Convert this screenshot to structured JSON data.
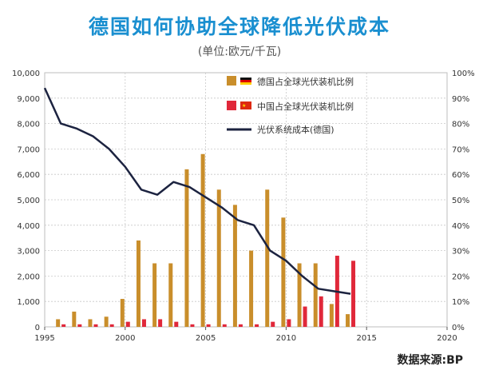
{
  "title": "德国如何协助全球降低光伏成本",
  "subtitle": "(单位:欧元/千瓦)",
  "source": "数据来源:BP",
  "colors": {
    "germany_bar": "#c98e2b",
    "china_bar": "#e0283a",
    "cost_line": "#1c2340",
    "grid": "#c8c8c8",
    "frame": "#bdbdbd"
  },
  "chart_data": {
    "type": "bar",
    "x_ticks": [
      1995,
      2000,
      2005,
      2010,
      2015,
      2020
    ],
    "xlim": [
      1995,
      2020
    ],
    "left_axis": {
      "ylim": [
        0,
        10000
      ],
      "ticks": [
        "0",
        "1,000",
        "2,000",
        "3,000",
        "4,000",
        "5,000",
        "6,000",
        "7,000",
        "8,000",
        "9,000",
        "10,000"
      ]
    },
    "right_axis": {
      "ylim": [
        0,
        100
      ],
      "ticks": [
        "0%",
        "10%",
        "20%",
        "30%",
        "40%",
        "50%",
        "60%",
        "70%",
        "80%",
        "90%",
        "100%"
      ]
    },
    "legend_placement": "top-right",
    "series": [
      {
        "name": "德国占全球光伏装机比例",
        "kind": "bar",
        "axis": "right",
        "x": [
          1996,
          1997,
          1998,
          1999,
          2000,
          2001,
          2002,
          2003,
          2004,
          2005,
          2006,
          2007,
          2008,
          2009,
          2010,
          2011,
          2012,
          2013,
          2014
        ],
        "values": [
          3,
          6,
          3,
          4,
          11,
          34,
          25,
          25,
          62,
          68,
          54,
          48,
          30,
          54,
          43,
          25,
          25,
          9,
          5
        ]
      },
      {
        "name": "中国占全球光伏装机比例",
        "kind": "bar",
        "axis": "right",
        "x": [
          1996,
          1997,
          1998,
          1999,
          2000,
          2001,
          2002,
          2003,
          2004,
          2005,
          2006,
          2007,
          2008,
          2009,
          2010,
          2011,
          2012,
          2013,
          2014
        ],
        "values": [
          1,
          1,
          1,
          1,
          2,
          3,
          3,
          2,
          1,
          1,
          1,
          1,
          1,
          2,
          3,
          8,
          12,
          28,
          26
        ]
      },
      {
        "name": "光伏系统成本(德国)",
        "kind": "line",
        "axis": "left",
        "x": [
          1995,
          1996,
          1997,
          1998,
          1999,
          2000,
          2001,
          2002,
          2003,
          2004,
          2005,
          2006,
          2007,
          2008,
          2009,
          2010,
          2011,
          2012,
          2013,
          2014
        ],
        "values": [
          9400,
          8000,
          7800,
          7500,
          7000,
          6300,
          5400,
          5200,
          5700,
          5500,
          5100,
          4700,
          4200,
          4000,
          3000,
          2600,
          2000,
          1500,
          1400,
          1300
        ]
      }
    ]
  }
}
